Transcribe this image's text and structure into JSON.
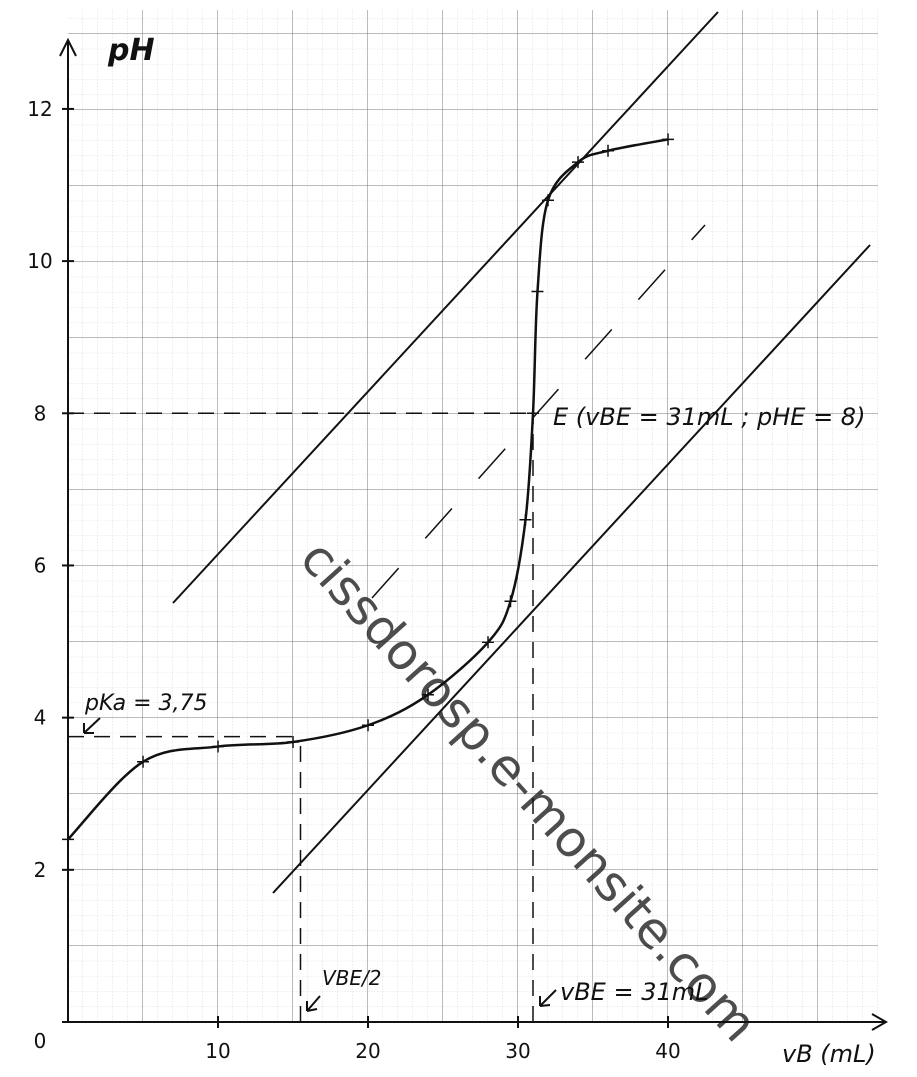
{
  "chart_data": {
    "type": "line",
    "y_label": "pH",
    "x_label": "vB (mL)",
    "x": [
      0,
      5,
      10,
      15,
      20,
      24,
      28,
      29.5,
      30.5,
      31,
      31.3,
      32,
      34,
      36,
      40
    ],
    "series": [
      {
        "name": "pH",
        "color": "#111111",
        "values": [
          2.4,
          3.42,
          3.62,
          3.68,
          3.9,
          4.3,
          4.99,
          5.53,
          6.6,
          8,
          9.6,
          10.8,
          11.3,
          11.45,
          11.6
        ]
      }
    ],
    "xlim": [
      0,
      54
    ],
    "ylim": [
      0,
      13.3
    ],
    "xticks": [
      10,
      20,
      30,
      40
    ],
    "yticks": [
      0,
      2,
      4,
      6,
      8,
      10,
      12
    ],
    "grid": true,
    "equivalence_point": {
      "x": 31,
      "y": 8
    },
    "half_equivalence_point": {
      "x": 15.5,
      "y": 3.75
    },
    "annotations": {
      "pka": "pKa = 3,75",
      "equivalence": "E (vBE = 31mL ; pHE = 8)",
      "half_volume": "VBE/2",
      "volume": "vBE = 31mL"
    },
    "watermark": "cissdorosp.e-monsite.com"
  }
}
